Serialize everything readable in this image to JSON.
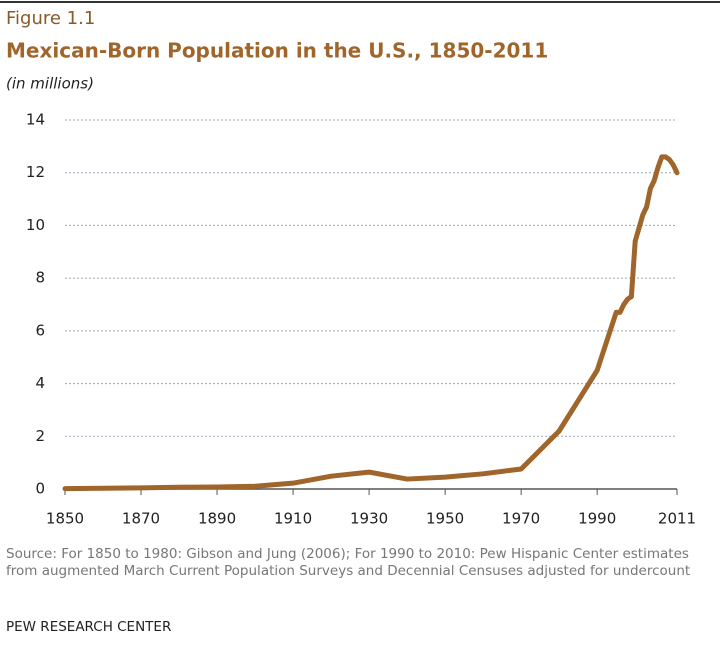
{
  "chart_data": {
    "type": "line",
    "figure_label": "Figure 1.1",
    "title": "Mexican-Born Population in the U.S., 1850-2011",
    "subtitle": "(in millions)",
    "x": [
      1850,
      1860,
      1870,
      1880,
      1890,
      1900,
      1910,
      1920,
      1930,
      1940,
      1950,
      1960,
      1970,
      1980,
      1990,
      1995,
      1996,
      1997,
      1998,
      1999,
      2000,
      2001,
      2002,
      2003,
      2004,
      2005,
      2006,
      2007,
      2008,
      2009,
      2010,
      2011
    ],
    "values": [
      0.013,
      0.027,
      0.042,
      0.068,
      0.078,
      0.103,
      0.222,
      0.486,
      0.641,
      0.377,
      0.451,
      0.576,
      0.76,
      2.2,
      4.5,
      6.7,
      6.7,
      7.0,
      7.2,
      7.3,
      9.4,
      9.9,
      10.4,
      10.7,
      11.4,
      11.7,
      12.2,
      12.6,
      12.6,
      12.5,
      12.3,
      12.0
    ],
    "color": "#a0652b",
    "xlim": [
      1850,
      2011
    ],
    "xticks": [
      1850,
      1870,
      1890,
      1910,
      1930,
      1950,
      1970,
      1990,
      2011
    ],
    "ylim": [
      0,
      14
    ],
    "yticks": [
      0,
      2,
      4,
      6,
      8,
      10,
      12,
      14
    ],
    "grid": true,
    "source": "Source: For 1850 to 1980: Gibson and Jung (2006); For 1990 to 2010: Pew Hispanic Center estimates from augmented March Current Population Surveys and Decennial Censuses adjusted for undercount",
    "credit": "PEW RESEARCH CENTER"
  }
}
